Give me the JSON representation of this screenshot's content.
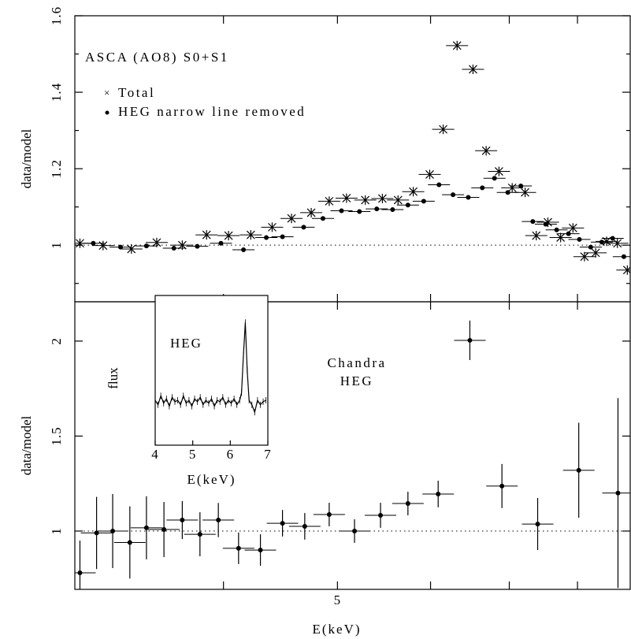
{
  "chart_data": [
    {
      "type": "scatter",
      "ylabel": "data/model",
      "annotation": "ASCA (AO8) S0+S1",
      "xlog": true,
      "xlim": [
        2.99,
        8.87
      ],
      "xminorticks": [
        4,
        5,
        6,
        7,
        8
      ],
      "ylim": [
        0.852,
        1.6
      ],
      "yticks": [
        1,
        1.2,
        1.4,
        1.6
      ],
      "yminorticks": [
        0.9,
        1.1,
        1.3,
        1.5
      ],
      "hline": 1,
      "series": [
        {
          "name": "Total",
          "marker": "asterisk",
          "color": "#000000",
          "x": [
            3.02,
            3.16,
            3.34,
            3.51,
            3.69,
            3.87,
            4.04,
            4.22,
            4.4,
            4.57,
            4.75,
            4.92,
            5.09,
            5.28,
            5.46,
            5.63,
            5.8,
            5.99,
            6.15,
            6.32,
            6.52,
            6.69,
            6.86,
            7.04,
            7.22,
            7.38,
            7.55,
            7.74,
            7.93,
            8.11,
            8.29,
            8.47,
            8.65,
            8.82
          ],
          "values": [
            1.005,
            0.999,
            0.99,
            1.007,
            1.0,
            1.027,
            1.025,
            1.027,
            1.047,
            1.07,
            1.085,
            1.115,
            1.123,
            1.118,
            1.122,
            1.118,
            1.14,
            1.185,
            1.303,
            1.522,
            1.46,
            1.247,
            1.193,
            1.15,
            1.138,
            1.025,
            1.06,
            1.02,
            1.045,
            0.97,
            0.98,
            1.01,
            1.005,
            0.935
          ]
        },
        {
          "name": "HEG narrow line removed",
          "marker": "dot",
          "color": "#000000",
          "x": [
            3.1,
            3.27,
            3.44,
            3.63,
            3.8,
            3.98,
            4.16,
            4.35,
            4.49,
            4.68,
            4.86,
            5.04,
            5.22,
            5.4,
            5.57,
            5.74,
            5.92,
            6.1,
            6.27,
            6.46,
            6.64,
            6.8,
            6.98,
            7.16,
            7.33,
            7.52,
            7.68,
            7.86,
            8.03,
            8.21,
            8.39,
            8.57,
            8.76
          ],
          "values": [
            1.005,
            0.995,
            0.998,
            0.992,
            0.997,
            1.005,
            0.988,
            1.02,
            1.022,
            1.047,
            1.07,
            1.09,
            1.088,
            1.095,
            1.093,
            1.105,
            1.115,
            1.158,
            1.132,
            1.125,
            1.15,
            1.175,
            1.138,
            1.155,
            1.062,
            1.055,
            1.04,
            1.03,
            1.015,
            0.995,
            1.008,
            1.018,
            0.97
          ]
        }
      ]
    },
    {
      "type": "scatter",
      "ylabel": "data/model",
      "xlabel": "E(keV)",
      "annotation": [
        "Chandra",
        "HEG"
      ],
      "xlog": true,
      "xlim": [
        2.99,
        8.87
      ],
      "xticks": [
        5
      ],
      "xminorticks": [
        4,
        6,
        7,
        8
      ],
      "ylim": [
        0.693,
        2.207
      ],
      "yticks": [
        1,
        1.5,
        2
      ],
      "hline": 1,
      "series": [
        {
          "marker": "dot",
          "color": "#000000",
          "x": [
            3.02,
            3.12,
            3.22,
            3.33,
            3.44,
            3.56,
            3.69,
            3.82,
            3.96,
            4.12,
            4.3,
            4.49,
            4.69,
            4.92,
            5.17,
            5.44,
            5.74,
            6.09,
            6.48,
            6.9,
            7.4,
            8.02,
            8.66
          ],
          "values": [
            0.78,
            0.99,
            1.0,
            0.94,
            1.017,
            1.008,
            1.058,
            0.983,
            1.058,
            0.909,
            0.9,
            1.041,
            1.025,
            1.087,
            1.0,
            1.083,
            1.145,
            1.195,
            2.004,
            1.237,
            1.037,
            1.32,
            1.2
          ],
          "yerr": [
            0.17,
            0.19,
            0.195,
            0.19,
            0.166,
            0.145,
            0.1,
            0.116,
            0.09,
            0.083,
            0.083,
            0.07,
            0.07,
            0.062,
            0.062,
            0.066,
            0.062,
            0.07,
            0.104,
            0.116,
            0.137,
            0.25,
            0.5
          ]
        }
      ]
    },
    {
      "type": "line",
      "title": "HEG",
      "ylabel": "flux",
      "xlabel": "E(keV)",
      "xlim": [
        4,
        7
      ],
      "xticks": [
        4,
        5,
        6,
        7
      ],
      "ylim": [
        0,
        1
      ],
      "series": [
        {
          "color": "#000000",
          "x": [
            4.0,
            4.075,
            4.15,
            4.225,
            4.3,
            4.375,
            4.45,
            4.525,
            4.6,
            4.675,
            4.75,
            4.825,
            4.9,
            4.975,
            5.05,
            5.125,
            5.2,
            5.275,
            5.35,
            5.425,
            5.5,
            5.575,
            5.65,
            5.725,
            5.8,
            5.875,
            5.95,
            6.025,
            6.1,
            6.175,
            6.25,
            6.3,
            6.35,
            6.4,
            6.45,
            6.5,
            6.575,
            6.65,
            6.725,
            6.8,
            6.875,
            6.95
          ],
          "values": [
            0.3,
            0.27,
            0.33,
            0.28,
            0.31,
            0.26,
            0.32,
            0.29,
            0.3,
            0.27,
            0.33,
            0.28,
            0.3,
            0.26,
            0.31,
            0.29,
            0.32,
            0.27,
            0.3,
            0.28,
            0.31,
            0.26,
            0.3,
            0.29,
            0.32,
            0.27,
            0.3,
            0.28,
            0.31,
            0.27,
            0.3,
            0.35,
            0.6,
            0.82,
            0.5,
            0.3,
            0.27,
            0.22,
            0.3,
            0.27,
            0.29,
            0.3
          ]
        }
      ]
    }
  ]
}
